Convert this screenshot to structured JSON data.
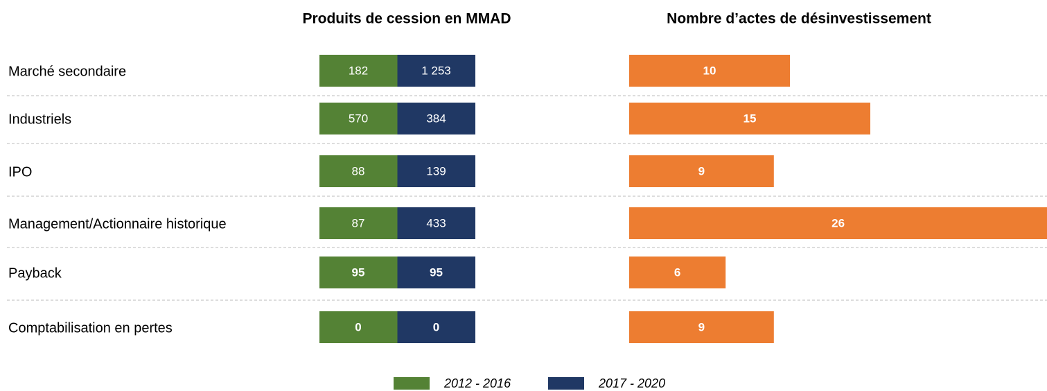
{
  "chart_data": [
    {
      "type": "table",
      "title": "Produits de cession en MMAD",
      "categories": [
        "Marché secondaire",
        "Industriels",
        "IPO",
        "Management/Actionnaire historique",
        "Payback",
        "Comptabilisation en pertes"
      ],
      "series": [
        {
          "name": "2012 - 2016",
          "color": "#548235",
          "values": [
            182,
            570,
            88,
            87,
            95,
            0
          ]
        },
        {
          "name": "2017 - 2020",
          "color": "#203864",
          "values": [
            1253,
            384,
            139,
            433,
            95,
            0
          ],
          "value_labels": [
            "1 253",
            "384",
            "139",
            "433",
            "95",
            "0"
          ]
        }
      ]
    },
    {
      "type": "bar",
      "title": "Nombre d’actes de désinvestissement",
      "categories": [
        "Marché secondaire",
        "Industriels",
        "IPO",
        "Management/Actionnaire historique",
        "Payback",
        "Comptabilisation en pertes"
      ],
      "values": [
        10,
        15,
        9,
        26,
        6,
        9
      ],
      "color": "#ed7d31"
    }
  ]
}
